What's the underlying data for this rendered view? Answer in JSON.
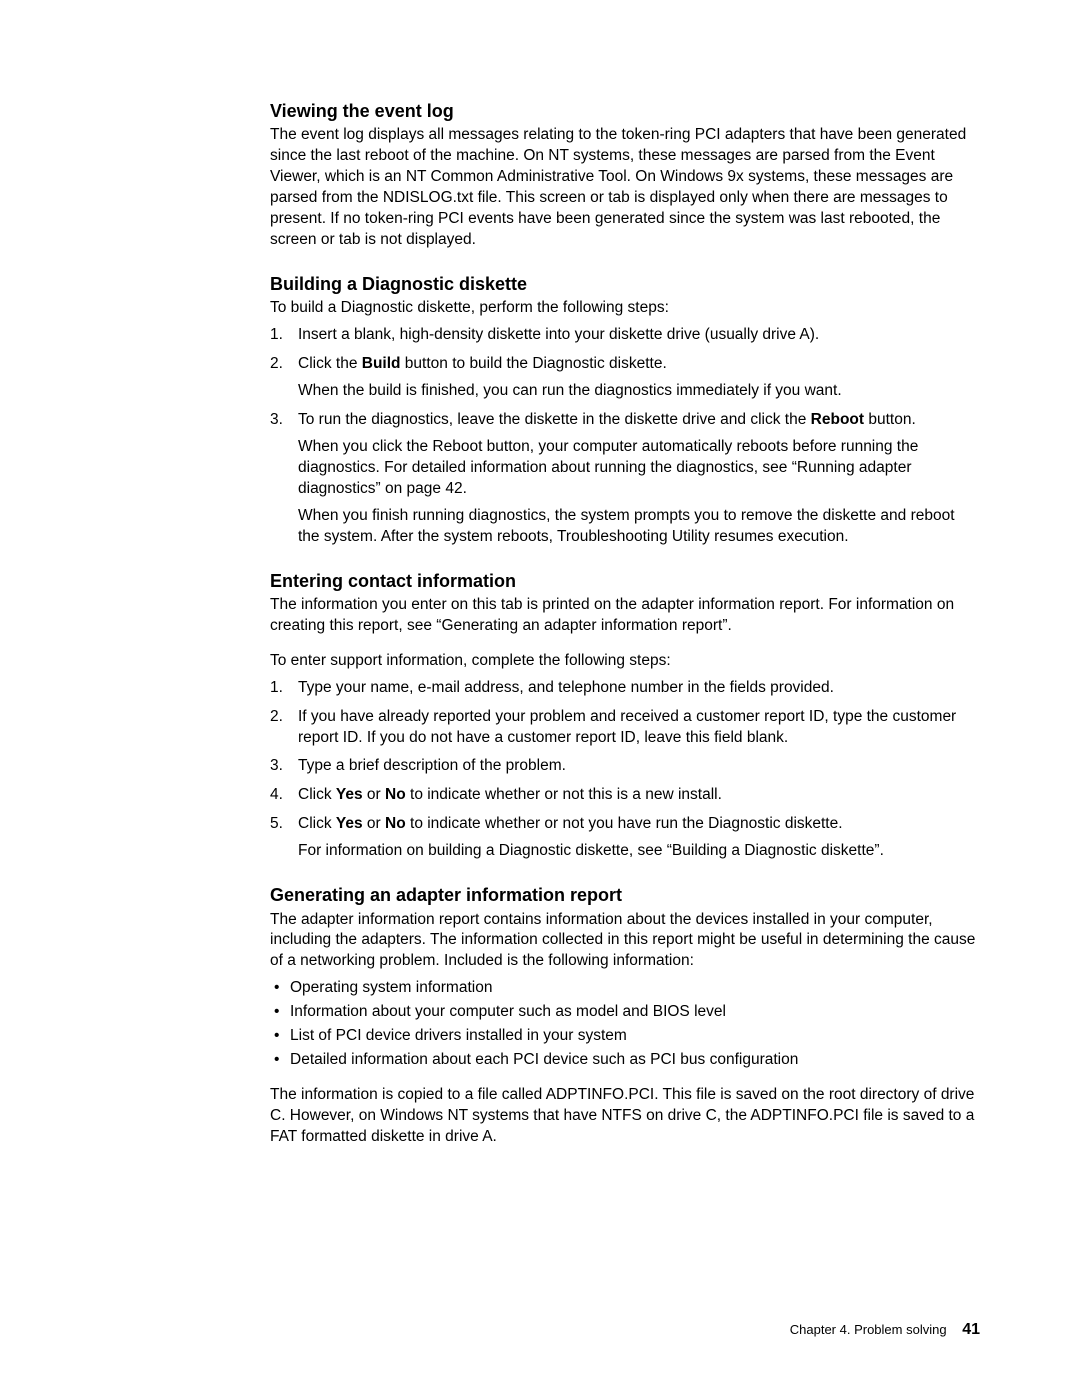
{
  "sections": {
    "viewing": {
      "heading": "Viewing the event log",
      "para": "The event log displays all messages relating to the token-ring PCI adapters that have been generated since the last reboot of the machine. On NT systems, these messages are parsed from the Event Viewer, which is an NT Common Administrative Tool. On Windows 9x systems, these messages are parsed from the NDISLOG.txt file. This screen or tab is displayed only when there are messages to present. If no token-ring PCI events have been generated since the system was last rebooted, the screen or tab is not displayed."
    },
    "building": {
      "heading": "Building a Diagnostic diskette",
      "intro": "To build a Diagnostic diskette, perform the following steps:",
      "step1": "Insert a blank, high-density diskette into your diskette drive (usually drive A).",
      "step2_pre": "Click the ",
      "step2_bold": "Build",
      "step2_post": " button to build the Diagnostic diskette.",
      "step2_sub": "When the build is finished, you can run the diagnostics immediately if you want.",
      "step3_pre": "To run the diagnostics, leave the diskette in the diskette drive and click the ",
      "step3_bold": "Reboot",
      "step3_post": " button.",
      "step3_sub1": "When you click the Reboot button, your computer automatically reboots before running the diagnostics. For detailed information about running the diagnostics, see “Running adapter diagnostics” on page 42.",
      "step3_sub2": "When you finish running diagnostics, the system prompts you to remove the diskette and reboot the system. After the system reboots, Troubleshooting Utility resumes execution."
    },
    "entering": {
      "heading": "Entering contact information",
      "para1_a": "The information you enter on this tab is printed on the adapter information report. For information on creating this report, see ",
      "para1_link": "“Generating an adapter information report”",
      "para1_b": ".",
      "para2": "To enter support information, complete the following steps:",
      "step1": "Type your name, e-mail address, and telephone number in the fields provided.",
      "step2": "If you have already reported your problem and received a customer report ID, type the customer report ID. If you do not have a customer report ID, leave this field blank.",
      "step3": "Type a brief description of the problem.",
      "step4_a": "Click ",
      "step4_b1": "Yes",
      "step4_c": " or ",
      "step4_b2": "No",
      "step4_d": " to indicate whether or not this is a new install.",
      "step5_a": "Click ",
      "step5_b1": "Yes",
      "step5_c": " or ",
      "step5_b2": "No",
      "step5_d": " to indicate whether or not you have run the Diagnostic diskette.",
      "step5_sub_a": "For information on building a Diagnostic diskette, see ",
      "step5_sub_link": "“Building a Diagnostic diskette”",
      "step5_sub_b": "."
    },
    "generating": {
      "heading": "Generating an adapter information report",
      "para1": "The adapter information report contains information about the devices installed in your computer, including the adapters. The information collected in this report might be useful in determining the cause of a networking problem. Included is the following information:",
      "b1": "Operating system information",
      "b2": "Information about your computer such as model and BIOS level",
      "b3": "List of PCI device drivers installed in your system",
      "b4": "Detailed information about each PCI device such as PCI bus configuration",
      "para2": "The information is copied to a file called ADPTINFO.PCI. This file is saved on the root directory of drive C. However, on Windows NT systems that have NTFS on drive C, the ADPTINFO.PCI file is saved to a FAT formatted diskette in drive A."
    }
  },
  "footer": {
    "chapter": "Chapter 4. Problem solving",
    "page": "41"
  }
}
